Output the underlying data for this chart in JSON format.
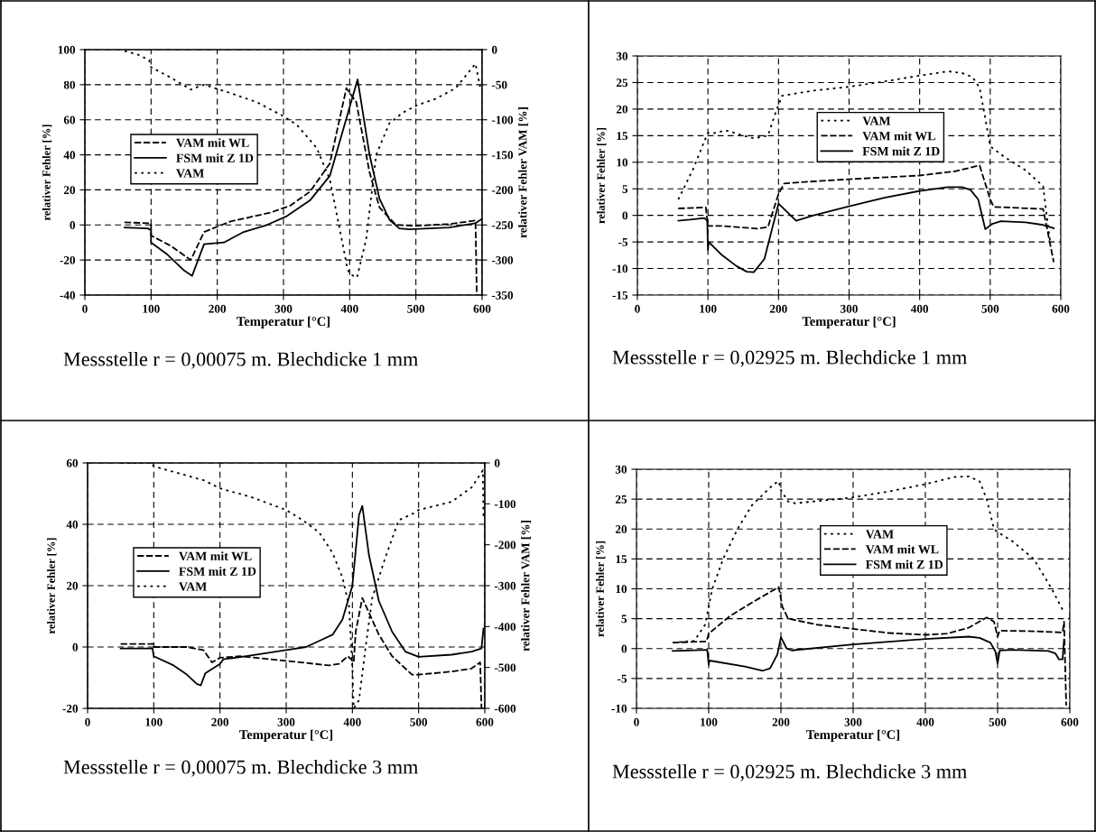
{
  "chart_data": [
    {
      "type": "line",
      "xlabel": "Temperatur [°C]",
      "ylabel": "relativer Fehler [%]",
      "y2label": "relativer Fehler VAM [%]",
      "xlim": [
        0,
        600
      ],
      "xticks": [
        0,
        100,
        200,
        300,
        400,
        500,
        600
      ],
      "ylim": [
        -40,
        100
      ],
      "yticks": [
        -40,
        -20,
        0,
        20,
        40,
        60,
        80,
        100
      ],
      "y2lim": [
        -350,
        0
      ],
      "y2ticks": [
        -350,
        -300,
        -250,
        -200,
        -150,
        -100,
        -50,
        0
      ],
      "grid": true,
      "legend": "left",
      "annotations": [
        "Messstelle r = 0,00075 m. Blechdicke 1 mm"
      ],
      "series": [
        {
          "name": "VAM mit WL",
          "color": "#000000",
          "line_style": "dashed",
          "x": [
            60,
            95,
            100,
            100,
            130,
            160,
            180,
            220,
            280,
            310,
            340,
            370,
            395,
            410,
            430,
            445,
            470,
            500,
            550,
            590,
            592
          ],
          "values": [
            1.5,
            1,
            1,
            -6,
            -12,
            -20,
            -4,
            2,
            7,
            11,
            19,
            35,
            78,
            70,
            30,
            10,
            0,
            -0.5,
            0.5,
            2.5,
            -40
          ]
        },
        {
          "name": "FSM mit Z 1D",
          "color": "#000000",
          "line_style": "solid",
          "x": [
            60,
            95,
            100,
            100,
            125,
            150,
            162,
            180,
            210,
            240,
            275,
            305,
            340,
            370,
            412,
            430,
            445,
            460,
            475,
            490,
            550,
            590,
            600
          ],
          "values": [
            -1.5,
            -2,
            -3,
            -10,
            -17,
            -26,
            -29,
            -11,
            -10,
            -4,
            0,
            5,
            14,
            28,
            83,
            40,
            15,
            3,
            -2,
            -2.5,
            -1.5,
            1,
            3.5
          ]
        },
        {
          "name": "VAM",
          "color": "#000000",
          "line_style": "dotted",
          "axis": "y2",
          "x": [
            60,
            80,
            97,
            100,
            130,
            160,
            180,
            220,
            260,
            300,
            320,
            350,
            370,
            390,
            396,
            400,
            411,
            425,
            440,
            460,
            480,
            500,
            530,
            560,
            590,
            597
          ],
          "values": [
            -2,
            -7,
            -15,
            -25,
            -40,
            -57,
            -50,
            -62,
            -75,
            -95,
            -107,
            -140,
            -185,
            -280,
            -310,
            -320,
            -325,
            -270,
            -150,
            -105,
            -90,
            -80,
            -70,
            -55,
            -20,
            -53
          ]
        }
      ]
    },
    {
      "type": "line",
      "xlabel": "Temperatur [°C]",
      "ylabel": "relativer Fehler [%]",
      "xlim": [
        0,
        600
      ],
      "xticks": [
        0,
        100,
        200,
        300,
        400,
        500,
        600
      ],
      "ylim": [
        -15,
        30
      ],
      "yticks": [
        -15,
        -10,
        -5,
        0,
        5,
        10,
        15,
        20,
        25,
        30
      ],
      "grid": true,
      "legend": "top",
      "annotations": [
        "Messstelle r = 0,02925 m. Blechdicke 1 mm"
      ],
      "series": [
        {
          "name": "VAM",
          "color": "#000000",
          "line_style": "dotted",
          "x": [
            58,
            80,
            95,
            100,
            110,
            125,
            150,
            165,
            185,
            195,
            205,
            250,
            300,
            350,
            400,
            440,
            460,
            475,
            485,
            492,
            500,
            520,
            550,
            575,
            580,
            585
          ],
          "values": [
            3,
            9,
            14,
            15.5,
            15.5,
            16,
            15,
            14.5,
            15,
            19,
            22.5,
            23.5,
            24.2,
            25.2,
            26.3,
            27.1,
            26.8,
            26,
            24,
            19,
            13,
            11,
            8.5,
            5.5,
            0,
            -5
          ]
        },
        {
          "name": "VAM mit WL",
          "color": "#000000",
          "line_style": "dashed",
          "x": [
            58,
            97,
            100,
            120,
            170,
            185,
            200,
            208,
            250,
            300,
            400,
            450,
            485,
            500,
            505,
            575,
            590
          ],
          "values": [
            1.3,
            1.5,
            -2,
            -2,
            -2.5,
            -2.2,
            4,
            6,
            6.4,
            6.8,
            7.5,
            8.3,
            9.4,
            3,
            1.6,
            1.2,
            -8.8
          ]
        },
        {
          "name": "FSM mit Z 1D",
          "color": "#000000",
          "line_style": "solid",
          "x": [
            58,
            75,
            95,
            99,
            100,
            101,
            120,
            140,
            155,
            165,
            180,
            200,
            225,
            250,
            300,
            350,
            400,
            440,
            460,
            472,
            483,
            493,
            503,
            515,
            550,
            575,
            590
          ],
          "values": [
            -1,
            -0.8,
            -0.5,
            -1,
            -6.5,
            -5,
            -7.5,
            -9.5,
            -10.6,
            -10.7,
            -8.2,
            2.2,
            -1,
            0,
            1.7,
            3.3,
            4.6,
            5.3,
            5.3,
            4.8,
            3,
            -2.6,
            -1.6,
            -1.1,
            -1.3,
            -1.8,
            -2.4
          ]
        }
      ]
    },
    {
      "type": "line",
      "xlabel": "Temperatur [°C]",
      "ylabel": "relativer Fehler [%]",
      "y2label": "relativer Fehler VAM [%]",
      "xlim": [
        0,
        600
      ],
      "xticks": [
        0,
        100,
        200,
        300,
        400,
        500,
        600
      ],
      "ylim": [
        -20,
        60
      ],
      "yticks": [
        -20,
        0,
        20,
        40,
        60
      ],
      "y2lim": [
        -600,
        0
      ],
      "y2ticks": [
        -600,
        -500,
        -400,
        -300,
        -200,
        -100,
        0
      ],
      "grid": true,
      "legend": "left",
      "annotations": [
        "Messstelle r = 0,00075 m. Blechdicke 3 mm"
      ],
      "series": [
        {
          "name": "VAM mit WL",
          "color": "#000000",
          "line_style": "dashed",
          "x": [
            50,
            100,
            100,
            150,
            175,
            188,
            200,
            230,
            300,
            365,
            380,
            393,
            398,
            402,
            405,
            415,
            440,
            460,
            490,
            500,
            550,
            580,
            593,
            595
          ],
          "values": [
            1,
            1,
            0,
            0,
            -1,
            -5,
            -3.5,
            -3,
            -4.5,
            -6,
            -5.5,
            -3,
            -4,
            -5,
            5,
            16,
            4,
            -3,
            -9,
            -9,
            -8,
            -7,
            -5,
            -20
          ]
        },
        {
          "name": "FSM mit Z 1D",
          "color": "#000000",
          "line_style": "solid",
          "x": [
            50,
            98,
            100,
            130,
            150,
            165,
            171,
            178,
            200,
            205,
            240,
            300,
            330,
            355,
            370,
            385,
            400,
            410,
            415,
            425,
            440,
            460,
            480,
            500,
            550,
            580,
            595,
            598
          ],
          "values": [
            -0.5,
            -0.5,
            -3,
            -6,
            -9,
            -12,
            -12.5,
            -8.5,
            -5.5,
            -4,
            -3,
            -1,
            0,
            2.5,
            4,
            9,
            20,
            43,
            46,
            30,
            15,
            5,
            -1.5,
            -3.2,
            -2.5,
            -1.5,
            -0.5,
            6
          ]
        },
        {
          "name": "VAM",
          "color": "#000000",
          "line_style": "dotted",
          "axis": "y2",
          "x": [
            50,
            95,
            100,
            165,
            175,
            200,
            250,
            300,
            325,
            350,
            370,
            385,
            395,
            400,
            402,
            410,
            420,
            430,
            450,
            470,
            490,
            500,
            550,
            580,
            597,
            598
          ],
          "values": [
            0,
            0,
            -8,
            -38,
            -42,
            -62,
            -85,
            -115,
            -140,
            -170,
            -220,
            -280,
            -350,
            -500,
            -600,
            -580,
            -450,
            -330,
            -230,
            -140,
            -125,
            -115,
            -95,
            -60,
            -18,
            -130
          ]
        }
      ]
    },
    {
      "type": "line",
      "xlabel": "Temperatur [°C]",
      "ylabel": "relativer Fehler [%]",
      "xlim": [
        0,
        600
      ],
      "xticks": [
        0,
        100,
        200,
        300,
        400,
        500,
        600
      ],
      "ylim": [
        -10,
        30
      ],
      "yticks": [
        -10,
        -5,
        0,
        5,
        10,
        15,
        20,
        25,
        30
      ],
      "grid": true,
      "legend": "top",
      "annotations": [
        "Messstelle r = 0,02925 m. Blechdicke 3 mm"
      ],
      "series": [
        {
          "name": "VAM",
          "color": "#000000",
          "line_style": "dotted",
          "x": [
            50,
            80,
            95,
            100,
            105,
            120,
            140,
            160,
            190,
            197,
            200,
            210,
            220,
            260,
            300,
            350,
            400,
            440,
            460,
            475,
            485,
            495,
            500,
            520,
            550,
            575,
            590
          ],
          "values": [
            1,
            1.3,
            4,
            7,
            10,
            15,
            20,
            24,
            27.5,
            28,
            26.5,
            24.6,
            24.3,
            24.8,
            25.3,
            26.3,
            27.5,
            28.7,
            28.8,
            28,
            25,
            20,
            19.5,
            18,
            15,
            10,
            6.5
          ]
        },
        {
          "name": "VAM mit WL",
          "color": "#000000",
          "line_style": "dashed",
          "x": [
            50,
            97,
            100,
            130,
            160,
            197,
            202,
            210,
            250,
            300,
            350,
            400,
            430,
            460,
            485,
            495,
            500,
            503,
            550,
            590,
            592,
            595
          ],
          "values": [
            1,
            1.2,
            2.5,
            5.5,
            7.7,
            10.3,
            7,
            5,
            4,
            3.3,
            2.6,
            2.3,
            2.5,
            3.5,
            5.2,
            4.5,
            2,
            3,
            2.9,
            2.7,
            4.5,
            -9.5
          ]
        },
        {
          "name": "FSM mit Z 1D",
          "color": "#000000",
          "line_style": "solid",
          "x": [
            50,
            98,
            100,
            101,
            150,
            175,
            185,
            195,
            200,
            208,
            215,
            300,
            400,
            460,
            475,
            490,
            497,
            500,
            503,
            520,
            570,
            580,
            585,
            590,
            592
          ],
          "values": [
            -0.4,
            -0.2,
            -2.7,
            -2,
            -3,
            -3.7,
            -3.3,
            -1,
            1.9,
            0,
            -0.3,
            0.7,
            1.6,
            2,
            1.8,
            1,
            -0.5,
            -2.5,
            -0.3,
            -0.2,
            -0.4,
            -0.8,
            -1.8,
            -1.8,
            1.5
          ]
        }
      ]
    }
  ]
}
